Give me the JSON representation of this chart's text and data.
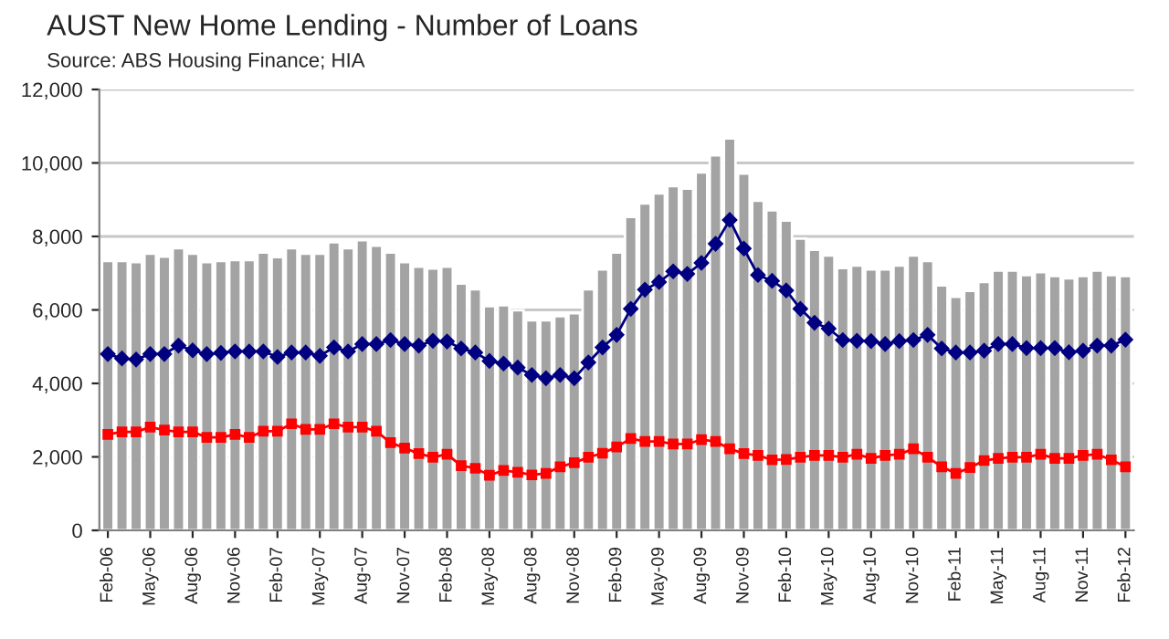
{
  "chart_data": {
    "type": "bar",
    "title": "AUST New Home Lending - Number of Loans",
    "subtitle": "Source: ABS Housing Finance; HIA",
    "categories": [
      "Feb-06",
      null,
      null,
      "May-06",
      null,
      null,
      "Aug-06",
      null,
      null,
      "Nov-06",
      null,
      null,
      "Feb-07",
      null,
      null,
      "May-07",
      null,
      null,
      "Aug-07",
      null,
      null,
      "Nov-07",
      null,
      null,
      "Feb-08",
      null,
      null,
      "May-08",
      null,
      null,
      "Aug-08",
      null,
      null,
      "Nov-08",
      null,
      null,
      "Feb-09",
      null,
      null,
      "May-09",
      null,
      null,
      "Aug-09",
      null,
      null,
      "Nov-09",
      null,
      null,
      "Feb-10",
      null,
      null,
      "May-10",
      null,
      null,
      "Aug-10",
      null,
      null,
      "Nov-10",
      null,
      null,
      "Feb-11",
      null,
      null,
      "May-11",
      null,
      null,
      "Aug-11",
      null,
      null,
      "Nov-11",
      null,
      null,
      "Feb-12"
    ],
    "series": [
      {
        "color": "#a3a3a3",
        "values": [
          7330,
          7330,
          7300,
          7530,
          7450,
          7680,
          7530,
          7300,
          7330,
          7360,
          7360,
          7560,
          7440,
          7680,
          7530,
          7530,
          7840,
          7680,
          7900,
          7750,
          7560,
          7300,
          7180,
          7130,
          7180,
          6720,
          6560,
          6100,
          6130,
          5990,
          5720,
          5720,
          5830,
          5910,
          6560,
          7100,
          7560,
          8530,
          8900,
          9170,
          9370,
          9300,
          9740,
          10210,
          10670,
          9710,
          8970,
          8710,
          8430,
          7940,
          7640,
          7480,
          7140,
          7210,
          7100,
          7100,
          7210,
          7480,
          7330,
          6670,
          6360,
          6520,
          6760,
          7070,
          7070,
          6950,
          7030,
          6920,
          6860,
          6920,
          7070,
          6950,
          6920
        ]
      },
      {
        "type": "line",
        "color": "#000080",
        "marker": "diamond",
        "values": [
          4800,
          4680,
          4650,
          4800,
          4800,
          5030,
          4900,
          4800,
          4830,
          4870,
          4870,
          4870,
          4720,
          4840,
          4840,
          4750,
          4980,
          4870,
          5070,
          5070,
          5180,
          5070,
          5030,
          5160,
          5140,
          4950,
          4840,
          4610,
          4540,
          4430,
          4230,
          4140,
          4230,
          4140,
          4570,
          4980,
          5320,
          6030,
          6550,
          6760,
          7050,
          6980,
          7280,
          7800,
          8450,
          7670,
          6950,
          6790,
          6530,
          6030,
          5650,
          5490,
          5180,
          5160,
          5150,
          5070,
          5150,
          5180,
          5320,
          4950,
          4840,
          4840,
          4890,
          5070,
          5070,
          4960,
          4960,
          4960,
          4850,
          4890,
          5030,
          5030,
          5190
        ]
      },
      {
        "type": "line",
        "color": "#ff0000",
        "marker": "square",
        "values": [
          2610,
          2680,
          2680,
          2810,
          2730,
          2680,
          2680,
          2530,
          2530,
          2610,
          2530,
          2700,
          2700,
          2900,
          2750,
          2750,
          2900,
          2810,
          2810,
          2700,
          2390,
          2240,
          2090,
          1990,
          2070,
          1760,
          1690,
          1500,
          1630,
          1580,
          1510,
          1550,
          1730,
          1840,
          1990,
          2100,
          2270,
          2500,
          2420,
          2420,
          2350,
          2350,
          2470,
          2420,
          2220,
          2090,
          2040,
          1920,
          1930,
          1990,
          2040,
          2040,
          1990,
          2070,
          1960,
          2040,
          2070,
          2220,
          1990,
          1730,
          1550,
          1710,
          1900,
          1960,
          1990,
          1990,
          2070,
          1960,
          1960,
          2040,
          2070,
          1920,
          1730
        ]
      }
    ],
    "ylim": [
      0,
      12000
    ],
    "yticks": [
      {
        "value": 0,
        "label": "0"
      },
      {
        "value": 2000,
        "label": "2,000"
      },
      {
        "value": 4000,
        "label": "4,000"
      },
      {
        "value": 6000,
        "label": "6,000"
      },
      {
        "value": 8000,
        "label": "8,000"
      },
      {
        "value": 10000,
        "label": "10,000"
      },
      {
        "value": 12000,
        "label": "12,000"
      }
    ],
    "grid": "y",
    "legend": false
  }
}
